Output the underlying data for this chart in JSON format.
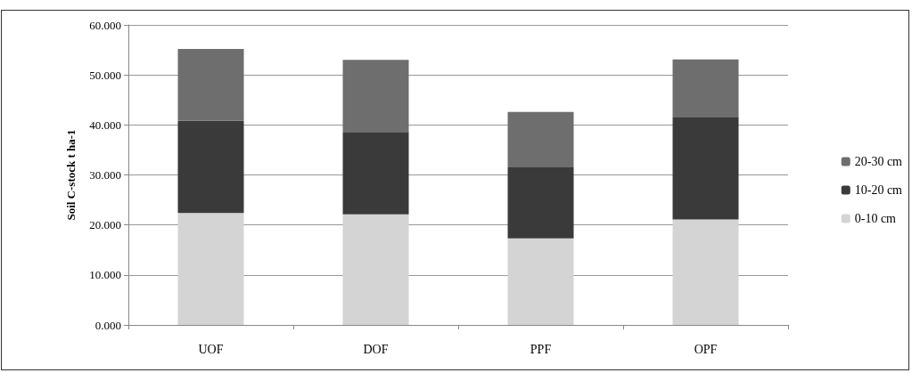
{
  "chart_data": {
    "type": "bar",
    "stacked": true,
    "ylabel": "Soil C-stock t ha-1",
    "categories": [
      "UOF",
      "DOF",
      "PPF",
      "OPF"
    ],
    "series": [
      {
        "name": "0-10 cm",
        "color": "#d4d4d4",
        "values": [
          22.4,
          22.1,
          17.3,
          21.1
        ]
      },
      {
        "name": "10-20 cm",
        "color": "#3a3a3a",
        "values": [
          18.4,
          16.5,
          14.2,
          20.5
        ]
      },
      {
        "name": "20-30 cm",
        "color": "#6e6e6e",
        "values": [
          14.4,
          14.4,
          11.1,
          11.5
        ]
      }
    ],
    "ylim": [
      0,
      60
    ],
    "yticks": [
      {
        "value": 0,
        "label": "0.000"
      },
      {
        "value": 10,
        "label": "10.000"
      },
      {
        "value": 20,
        "label": "20.000"
      },
      {
        "value": 30,
        "label": "30.000"
      },
      {
        "value": 40,
        "label": "40.000"
      },
      {
        "value": 50,
        "label": "50.000"
      },
      {
        "value": 60,
        "label": "60.000"
      }
    ],
    "grid": "y",
    "legend": "right"
  }
}
